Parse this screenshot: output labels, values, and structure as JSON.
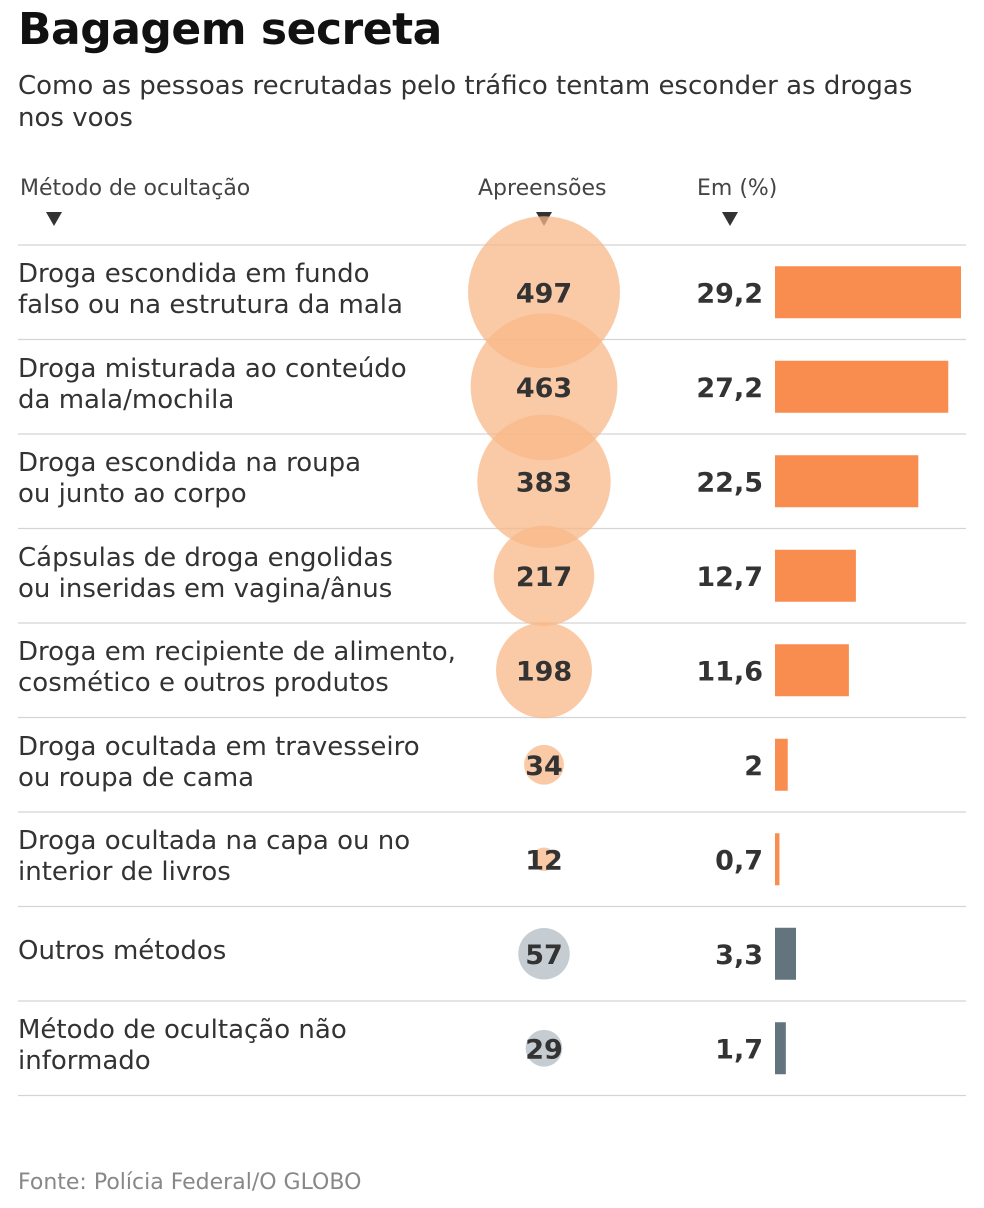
{
  "header": {
    "title": "Bagagem secreta",
    "subtitle": "Como as pessoas recrutadas pelo tráfico tentam esconder as drogas nos voos"
  },
  "columns": {
    "method": "Método de ocultação",
    "seizures": "Apreensões",
    "percent": "Em (%)"
  },
  "colors": {
    "accent": "#F98C4F",
    "bubble": "#F8B888",
    "other": "#63747F",
    "other_bubble": "#C5CDD3",
    "divider": "#D4D4D4"
  },
  "chart_data": {
    "type": "table",
    "title": "Bagagem secreta",
    "subtitle": "Como as pessoas recrutadas pelo tráfico tentam esconder as drogas nos voos",
    "column_labels": [
      "Método de ocultação",
      "Apreensões",
      "Em (%)"
    ],
    "rows": [
      {
        "label": "Droga escondida em fundo\nfalso ou na estrutura da mala",
        "seizures": 497,
        "percent": 29.2,
        "percent_label": "29,2",
        "group": "main"
      },
      {
        "label": "Droga misturada ao conteúdo\nda mala/mochila",
        "seizures": 463,
        "percent": 27.2,
        "percent_label": "27,2",
        "group": "main"
      },
      {
        "label": "Droga escondida na roupa\nou junto ao corpo",
        "seizures": 383,
        "percent": 22.5,
        "percent_label": "22,5",
        "group": "main"
      },
      {
        "label": "Cápsulas de droga engolidas\nou inseridas em vagina/ânus",
        "seizures": 217,
        "percent": 12.7,
        "percent_label": "12,7",
        "group": "main"
      },
      {
        "label": "Droga em recipiente de alimento,\ncosmético e outros produtos",
        "seizures": 198,
        "percent": 11.6,
        "percent_label": "11,6",
        "group": "main"
      },
      {
        "label": "Droga ocultada em travesseiro\nou roupa de cama",
        "seizures": 34,
        "percent": 2,
        "percent_label": "2",
        "group": "main"
      },
      {
        "label": "Droga ocultada na capa ou no\ninterior de livros",
        "seizures": 12,
        "percent": 0.7,
        "percent_label": "0,7",
        "group": "main"
      },
      {
        "label": "Outros métodos",
        "seizures": 57,
        "percent": 3.3,
        "percent_label": "3,3",
        "group": "other"
      },
      {
        "label": "Método de ocultação não\ninformado",
        "seizures": 29,
        "percent": 1.7,
        "percent_label": "1,7",
        "group": "other"
      }
    ]
  },
  "footer": {
    "source": "Fonte: Polícia Federal/O GLOBO"
  }
}
